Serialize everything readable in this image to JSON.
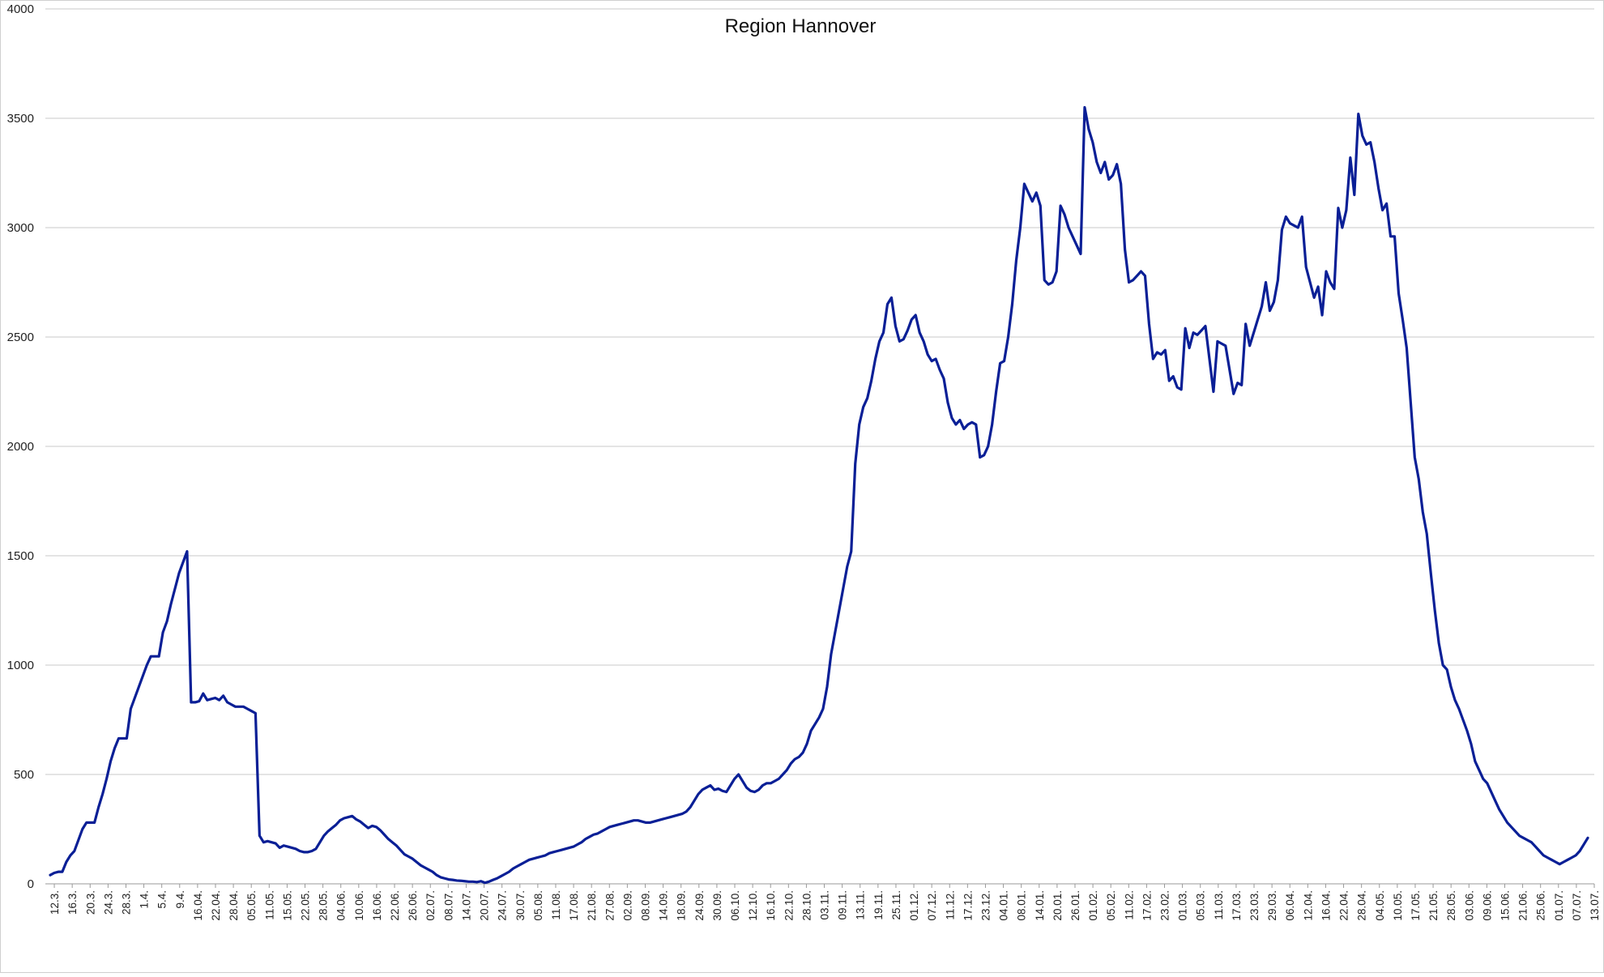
{
  "chart_data": {
    "type": "line",
    "title": "Region Hannover",
    "xlabel": "",
    "ylabel": "",
    "ylim": [
      0,
      4000
    ],
    "yticks": [
      0,
      500,
      1000,
      1500,
      2000,
      2500,
      3000,
      3500,
      4000
    ],
    "grid": "horizontal",
    "legend": "none",
    "line_color": "#0a1f96",
    "x_tick_labels": [
      "12.3.",
      "16.3.",
      "20.3.",
      "24.3.",
      "28.3.",
      "1.4.",
      "5.4.",
      "9.4.",
      "16.04.",
      "22.04.",
      "28.04.",
      "05.05.",
      "11.05.",
      "15.05.",
      "22.05.",
      "28.05.",
      "04.06.",
      "10.06.",
      "16.06.",
      "22.06.",
      "26.06.",
      "02.07.",
      "08.07.",
      "14.07.",
      "20.07.",
      "24.07.",
      "30.07.",
      "05.08.",
      "11.08.",
      "17.08.",
      "21.08.",
      "27.08.",
      "02.09.",
      "08.09.",
      "14.09.",
      "18.09.",
      "24.09.",
      "30.09.",
      "06.10.",
      "12.10.",
      "16.10.",
      "22.10.",
      "28.10.",
      "03.11.",
      "09.11.",
      "13.11.",
      "19.11.",
      "25.11.",
      "01.12.",
      "07.12.",
      "11.12.",
      "17.12.",
      "23.12.",
      "04.01.",
      "08.01.",
      "14.01.",
      "20.01.",
      "26.01.",
      "01.02.",
      "05.02.",
      "11.02.",
      "17.02.",
      "23.02.",
      "01.03.",
      "05.03.",
      "11.03.",
      "17.03.",
      "23.03.",
      "29.03.",
      "06.04.",
      "12.04.",
      "16.04.",
      "22.04.",
      "28.04.",
      "04.05.",
      "10.05.",
      "17.05.",
      "21.05.",
      "28.05.",
      "03.06.",
      "09.06.",
      "15.06.",
      "21.06.",
      "25.06.",
      "01.07.",
      "07.07.",
      "13.07."
    ],
    "series": [
      {
        "values": [
          40,
          50,
          55,
          55,
          100,
          130,
          150,
          200,
          250,
          280,
          280,
          280,
          350,
          410,
          480,
          560,
          620,
          665,
          665,
          665,
          800,
          850,
          900,
          950,
          1000,
          1040,
          1040,
          1040,
          1150,
          1200,
          1280,
          1350,
          1420,
          1470,
          1520,
          830,
          830,
          835,
          870,
          840,
          845,
          850,
          840,
          860,
          830,
          820,
          810,
          810,
          810,
          800,
          790,
          780,
          220,
          190,
          195,
          190,
          185,
          165,
          175,
          170,
          165,
          160,
          150,
          145,
          145,
          150,
          160,
          190,
          220,
          240,
          255,
          270,
          290,
          300,
          305,
          310,
          295,
          285,
          270,
          255,
          265,
          260,
          245,
          225,
          205,
          190,
          175,
          155,
          135,
          125,
          115,
          100,
          85,
          75,
          65,
          55,
          40,
          30,
          25,
          20,
          18,
          15,
          14,
          12,
          10,
          10,
          8,
          12,
          5,
          10,
          18,
          25,
          35,
          45,
          55,
          70,
          80,
          90,
          100,
          110,
          115,
          120,
          125,
          130,
          140,
          145,
          150,
          155,
          160,
          165,
          170,
          180,
          190,
          205,
          215,
          225,
          230,
          240,
          250,
          260,
          265,
          270,
          275,
          280,
          285,
          290,
          290,
          285,
          280,
          280,
          285,
          290,
          295,
          300,
          305,
          310,
          315,
          320,
          330,
          350,
          380,
          410,
          430,
          440,
          450,
          430,
          435,
          425,
          420,
          450,
          480,
          500,
          470,
          440,
          425,
          420,
          430,
          450,
          460,
          460,
          470,
          480,
          500,
          520,
          550,
          570,
          580,
          600,
          640,
          700,
          730,
          760,
          800,
          900,
          1050,
          1150,
          1250,
          1350,
          1450,
          1520,
          1920,
          2100,
          2180,
          2220,
          2300,
          2400,
          2480,
          2520,
          2650,
          2680,
          2550,
          2480,
          2490,
          2530,
          2580,
          2600,
          2520,
          2480,
          2420,
          2390,
          2400,
          2350,
          2310,
          2200,
          2130,
          2100,
          2120,
          2080,
          2100,
          2110,
          2100,
          1950,
          1960,
          2000,
          2100,
          2250,
          2380,
          2390,
          2500,
          2650,
          2850,
          3000,
          3200,
          3160,
          3120,
          3160,
          3100,
          2760,
          2740,
          2750,
          2800,
          3100,
          3060,
          3000,
          2960,
          2920,
          2880,
          3550,
          3450,
          3390,
          3300,
          3250,
          3300,
          3220,
          3240,
          3290,
          3200,
          2900,
          2750,
          2760,
          2780,
          2800,
          2780,
          2560,
          2400,
          2430,
          2420,
          2440,
          2300,
          2320,
          2270,
          2260,
          2540,
          2450,
          2520,
          2510,
          2530,
          2550,
          2400,
          2250,
          2480,
          2470,
          2460,
          2350,
          2240,
          2290,
          2280,
          2560,
          2460,
          2520,
          2580,
          2640,
          2750,
          2620,
          2660,
          2760,
          2990,
          3050,
          3020,
          3010,
          3000,
          3050,
          2820,
          2750,
          2680,
          2730,
          2600,
          2800,
          2750,
          2720,
          3090,
          3000,
          3080,
          3320,
          3150,
          3520,
          3420,
          3380,
          3390,
          3300,
          3180,
          3080,
          3110,
          2960,
          2960,
          2700,
          2580,
          2450,
          2200,
          1950,
          1850,
          1700,
          1600,
          1420,
          1250,
          1100,
          1000,
          980,
          900,
          840,
          800,
          750,
          700,
          640,
          560,
          520,
          480,
          460,
          420,
          380,
          340,
          310,
          280,
          260,
          240,
          220,
          210,
          200,
          190,
          170,
          150,
          130,
          120,
          110,
          100,
          90,
          100,
          110,
          120,
          130,
          150,
          180,
          210
        ]
      }
    ]
  }
}
